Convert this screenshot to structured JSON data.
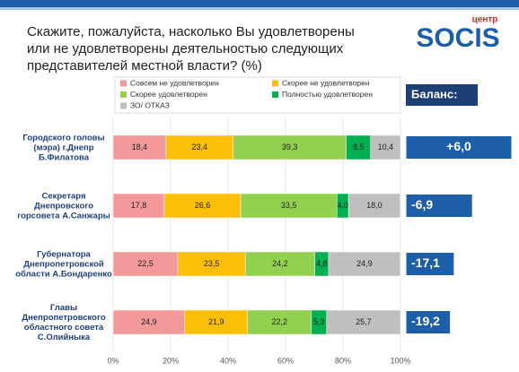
{
  "chart_data": {
    "type": "stacked-bar-horizontal",
    "title": "Скажите, пожалуйста, насколько Вы удовлетворены или не удовлетворены деятельностью следующих представителей местной власти? (%)",
    "logo": {
      "small": "центр",
      "main": "SOCIS"
    },
    "categories": [
      "Городского головы\n(мэра) г.Днепр\nБ.Филатова",
      "Секретаря\nДнепровского\nгорсовета А.Санжары",
      "Губернатора\nДнепропетровской\nобласти А.Бондаренко",
      "Главы\nДнепропетровского\nобластного совета\nС.Олийныка"
    ],
    "series": [
      {
        "name": "Совсем не удовлетворен",
        "color": "#f4999a",
        "values": [
          18.4,
          17.8,
          22.5,
          24.9
        ],
        "value_labels": [
          "18,4",
          "17,8",
          "22,5",
          "24,9"
        ]
      },
      {
        "name": "Скорее не удовлетворен",
        "color": "#fbbf0a",
        "values": [
          23.4,
          26.6,
          23.5,
          21.9
        ],
        "value_labels": [
          "23,4",
          "26,6",
          "23,5",
          "21,9"
        ]
      },
      {
        "name": "Скорее удовлетворен",
        "color": "#92d050",
        "values": [
          39.3,
          33.5,
          24.2,
          22.2
        ],
        "value_labels": [
          "39,3",
          "33,5",
          "24,2",
          "22,2"
        ]
      },
      {
        "name": "Полностью удовлетворен",
        "color": "#00b050",
        "values": [
          8.5,
          4.0,
          4.8,
          5.3
        ],
        "value_labels": [
          "8,5",
          "4,0",
          "4,8",
          "5,3"
        ]
      },
      {
        "name": "ЗО/ ОТКАЗ",
        "color": "#bfbfbf",
        "values": [
          10.4,
          18.0,
          24.9,
          25.7
        ],
        "value_labels": [
          "10,4",
          "18,0",
          "24,9",
          "25,7"
        ]
      }
    ],
    "balance": {
      "title": "Баланс:",
      "color": "#1c5ea8",
      "values": [
        6.0,
        -6.9,
        -17.1,
        -19.2
      ],
      "value_labels": [
        "+6,0",
        "-6,9",
        "-17,1",
        "-19,2"
      ]
    },
    "xlim": [
      0,
      100
    ],
    "xticks": [
      {
        "value": 0,
        "label": "0%"
      },
      {
        "value": 20,
        "label": "20%"
      },
      {
        "value": 40,
        "label": "40%"
      },
      {
        "value": 60,
        "label": "60%"
      },
      {
        "value": 80,
        "label": "80%"
      },
      {
        "value": 100,
        "label": "100%"
      }
    ],
    "grid": true
  }
}
